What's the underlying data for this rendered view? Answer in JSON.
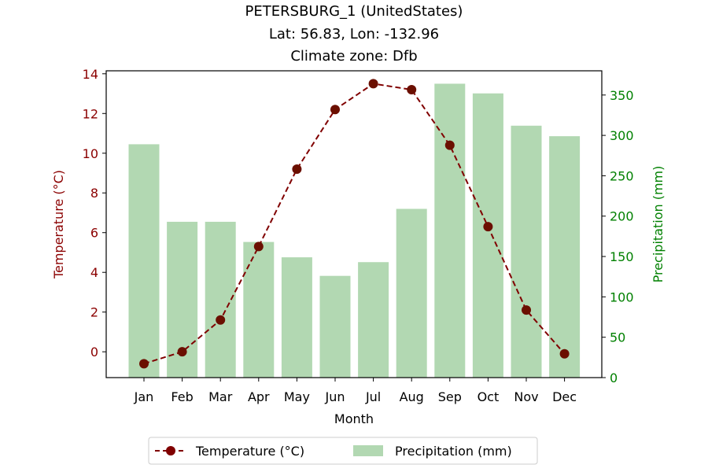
{
  "chart_data": {
    "type": "bar+line",
    "title_lines": [
      "PETERSBURG_1 (UnitedStates)",
      "Lat: 56.83, Lon: -132.96",
      "Climate zone: Dfb"
    ],
    "xlabel": "Month",
    "ylabel_left": "Temperature (°C)",
    "ylabel_right": "Precipitation (mm)",
    "categories": [
      "Jan",
      "Feb",
      "Mar",
      "Apr",
      "May",
      "Jun",
      "Jul",
      "Aug",
      "Sep",
      "Oct",
      "Nov",
      "Dec"
    ],
    "temperature": {
      "name": "Temperature (°C)",
      "values": [
        -0.6,
        -0.0,
        1.6,
        5.3,
        9.2,
        12.2,
        13.5,
        13.2,
        10.4,
        6.3,
        2.1,
        -0.1
      ],
      "color": "#800000",
      "style": "dashed line with circle markers"
    },
    "precipitation": {
      "name": "Precipitation (mm)",
      "values": [
        289,
        193,
        193,
        168,
        149,
        126,
        143,
        209,
        364,
        352,
        312,
        299
      ],
      "color": "#b2d8b2"
    },
    "ylim_left": [
      -1.3,
      14.15
    ],
    "ylim_right": [
      0,
      380
    ],
    "yticks_left": [
      0,
      2,
      4,
      6,
      8,
      10,
      12,
      14
    ],
    "yticks_right": [
      0,
      50,
      100,
      150,
      200,
      250,
      300,
      350
    ],
    "left_axis_color": "#8b0000",
    "right_axis_color": "#008000",
    "legend": {
      "placement": "bottom-center",
      "entries": [
        "Temperature (°C)",
        "Precipitation (mm)"
      ]
    },
    "grid": false
  }
}
